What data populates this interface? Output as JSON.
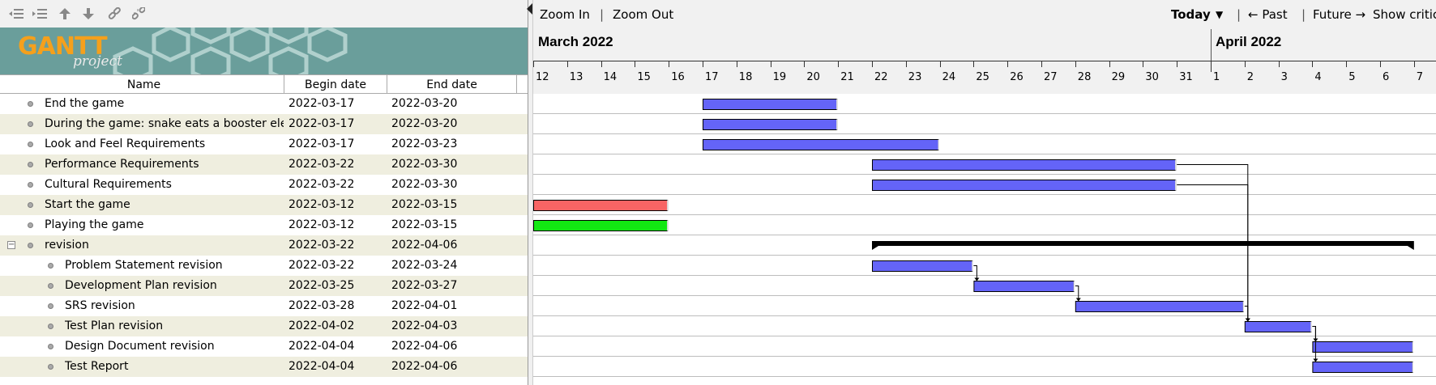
{
  "toolbar": {
    "icons": [
      "unindent-icon",
      "indent-icon",
      "move-up-icon",
      "move-down-icon",
      "link-icon",
      "unlink-icon"
    ]
  },
  "logo": {
    "title": "GANTT",
    "subtitle": "project"
  },
  "columns": {
    "name": "Name",
    "begin": "Begin date",
    "end": "End date"
  },
  "tasks": [
    {
      "name": "End the game",
      "begin": "2022-03-17",
      "end": "2022-03-20",
      "level": 0,
      "color": "#6464f8"
    },
    {
      "name": "During the game: snake eats a booster eleme...",
      "begin": "2022-03-17",
      "end": "2022-03-20",
      "level": 0,
      "color": "#6464f8"
    },
    {
      "name": "Look and Feel Requirements",
      "begin": "2022-03-17",
      "end": "2022-03-23",
      "level": 0,
      "color": "#6464f8"
    },
    {
      "name": "Performance Requirements",
      "begin": "2022-03-22",
      "end": "2022-03-30",
      "level": 0,
      "color": "#6464f8"
    },
    {
      "name": "Cultural Requirements",
      "begin": "2022-03-22",
      "end": "2022-03-30",
      "level": 0,
      "color": "#6464f8"
    },
    {
      "name": "Start the game",
      "begin": "2022-03-12",
      "end": "2022-03-15",
      "level": 0,
      "color": "#f86464"
    },
    {
      "name": "Playing the game",
      "begin": "2022-03-12",
      "end": "2022-03-15",
      "level": 0,
      "color": "#12e812"
    },
    {
      "name": "revision",
      "begin": "2022-03-22",
      "end": "2022-04-06",
      "level": 0,
      "summary": true,
      "color": "#000000"
    },
    {
      "name": "Problem Statement revision",
      "begin": "2022-03-22",
      "end": "2022-03-24",
      "level": 1,
      "color": "#6464f8"
    },
    {
      "name": "Development Plan revision",
      "begin": "2022-03-25",
      "end": "2022-03-27",
      "level": 1,
      "color": "#6464f8"
    },
    {
      "name": "SRS revision",
      "begin": "2022-03-28",
      "end": "2022-04-01",
      "level": 1,
      "color": "#6464f8"
    },
    {
      "name": "Test Plan revision",
      "begin": "2022-04-02",
      "end": "2022-04-03",
      "level": 1,
      "color": "#6464f8"
    },
    {
      "name": "Design Document revision",
      "begin": "2022-04-04",
      "end": "2022-04-06",
      "level": 1,
      "color": "#6464f8"
    },
    {
      "name": "Test Report",
      "begin": "2022-04-04",
      "end": "2022-04-06",
      "level": 1,
      "color": "#6464f8"
    }
  ],
  "chart_toolbar": {
    "zoom_in": "Zoom In",
    "sep1": "|",
    "zoom_out": "Zoom Out",
    "today": "Today",
    "today_arrow": "▼",
    "sep2": "|",
    "past": "← Past",
    "sep3": "|",
    "future": "Future →",
    "show_critical": "Show critical"
  },
  "timeline": {
    "months": [
      {
        "label": "March 2022",
        "start_day": "2022-03-12"
      },
      {
        "label": "April 2022",
        "start_day": "2022-04-01"
      }
    ],
    "days": [
      "12",
      "13",
      "14",
      "15",
      "16",
      "17",
      "18",
      "19",
      "20",
      "21",
      "22",
      "23",
      "24",
      "25",
      "26",
      "27",
      "28",
      "29",
      "30",
      "31",
      "1",
      "2",
      "3",
      "4",
      "5",
      "6",
      "7"
    ]
  },
  "dependencies": [
    {
      "from": "Problem Statement revision",
      "to": "Development Plan revision"
    },
    {
      "from": "Development Plan revision",
      "to": "SRS revision"
    },
    {
      "from": "SRS revision",
      "to": "Test Plan revision"
    },
    {
      "from": "Performance Requirements",
      "to": "Test Plan revision"
    },
    {
      "from": "Cultural Requirements",
      "to": "Test Plan revision"
    },
    {
      "from": "Test Plan revision",
      "to": "Design Document revision"
    },
    {
      "from": "Test Plan revision",
      "to": "Test Report"
    }
  ]
}
